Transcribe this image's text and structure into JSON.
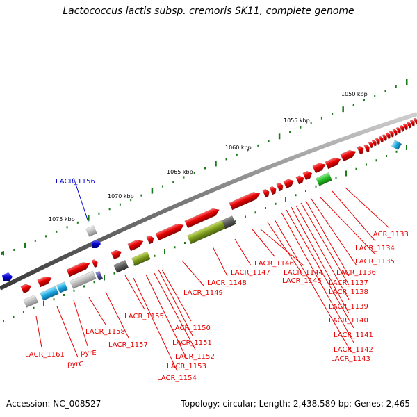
{
  "title": "Lactococcus lactis subsp. cremoris SK11, complete genome",
  "footer": {
    "accession": "Accession: NC_008527",
    "summary": "Topology: circular; Length: 2,438,589 bp; Genes: 2,465"
  },
  "scale_labels": [
    "1050 kbp",
    "1055 kbp",
    "1060 kbp",
    "1065 kbp",
    "1070 kbp",
    "1075 kbp"
  ],
  "colors": {
    "forward_gene": "#e60000",
    "highlight_gene": "#0000cc",
    "grey_gene": "#b8b8b8",
    "dark_gene": "#555555",
    "cyan_gene": "#1aa8e0",
    "olive_gene": "#7a9a1a",
    "green_gene": "#22bb22",
    "backbone": "#777777",
    "label_line": "#e60000",
    "ticks": "#1a7a1a"
  },
  "gene_labels": [
    {
      "text": "LACR_1133",
      "color": "red"
    },
    {
      "text": "LACR_1134",
      "color": "red"
    },
    {
      "text": "LACR_1135",
      "color": "red"
    },
    {
      "text": "LACR_1136",
      "color": "red"
    },
    {
      "text": "LACR_1137",
      "color": "red"
    },
    {
      "text": "LACR_1138",
      "color": "red"
    },
    {
      "text": "LACR_1139",
      "color": "red"
    },
    {
      "text": "LACR_1140",
      "color": "red"
    },
    {
      "text": "LACR_1141",
      "color": "red"
    },
    {
      "text": "LACR_1142",
      "color": "red"
    },
    {
      "text": "LACR_1143",
      "color": "red"
    },
    {
      "text": "LACR_1144",
      "color": "red"
    },
    {
      "text": "LACR_1145",
      "color": "red"
    },
    {
      "text": "LACR_1146",
      "color": "red"
    },
    {
      "text": "LACR_1147",
      "color": "red"
    },
    {
      "text": "LACR_1148",
      "color": "red"
    },
    {
      "text": "LACR_1149",
      "color": "red"
    },
    {
      "text": "LACR_1150",
      "color": "red"
    },
    {
      "text": "LACR_1151",
      "color": "red"
    },
    {
      "text": "LACR_1152",
      "color": "red"
    },
    {
      "text": "LACR_1153",
      "color": "red"
    },
    {
      "text": "LACR_1154",
      "color": "red"
    },
    {
      "text": "LACR_1155",
      "color": "red"
    },
    {
      "text": "LACR_1156",
      "color": "blue"
    },
    {
      "text": "LACR_1157",
      "color": "red"
    },
    {
      "text": "LACR_1158",
      "color": "red"
    },
    {
      "text": "pyrE",
      "color": "red"
    },
    {
      "text": "pyrC",
      "color": "red"
    },
    {
      "text": "LACR_1161",
      "color": "red"
    }
  ]
}
